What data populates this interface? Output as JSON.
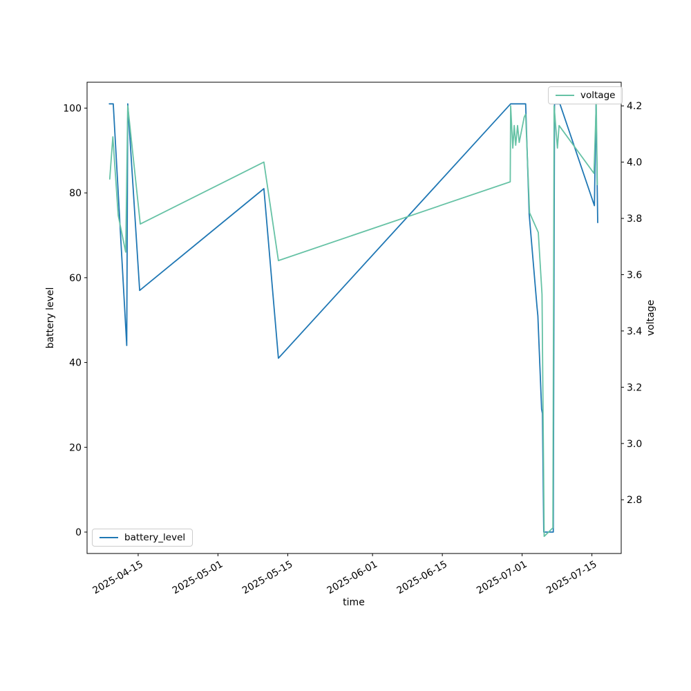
{
  "figure": {
    "background": "#ffffff"
  },
  "chart_data": {
    "type": "line",
    "title": "",
    "xlabel": "time",
    "ylabel_left": "battery level",
    "ylabel_right": "voltage",
    "legend_left": "battery_level",
    "legend_right": "voltage",
    "grid": false,
    "x_ticks": [
      "2025-04-15",
      "2025-05-01",
      "2025-05-15",
      "2025-06-01",
      "2025-06-15",
      "2025-07-01",
      "2025-07-15"
    ],
    "y_left_ticks": [
      "0",
      "20",
      "40",
      "60",
      "80",
      "100"
    ],
    "y_right_ticks": [
      "2.8",
      "3.0",
      "3.2",
      "3.4",
      "3.6",
      "3.8",
      "4.0",
      "4.2"
    ],
    "xlim": [
      "2025-04-04 18:00",
      "2025-07-20 21:00"
    ],
    "ylim_left": [
      -5.05,
      106.1
    ],
    "ylim_right": [
      2.609,
      4.284
    ],
    "series": [
      {
        "name": "battery_level",
        "axis": "left",
        "color": "#1f77b4",
        "points": [
          [
            "2025-04-09 05:00",
            101
          ],
          [
            "2025-04-10 00:00",
            101
          ],
          [
            "2025-04-12 17:00",
            44
          ],
          [
            "2025-04-12 22:00",
            101
          ],
          [
            "2025-04-15 07:00",
            57
          ],
          [
            "2025-05-10 05:00",
            81
          ],
          [
            "2025-05-13 03:00",
            41
          ],
          [
            "2025-06-28 17:00",
            101
          ],
          [
            "2025-07-01 17:00",
            101
          ],
          [
            "2025-07-02 10:00",
            75
          ],
          [
            "2025-07-04 00:00",
            53
          ],
          [
            "2025-07-04 04:00",
            51
          ],
          [
            "2025-07-04 22:00",
            29
          ],
          [
            "2025-07-05 02:00",
            28
          ],
          [
            "2025-07-05 08:00",
            0
          ],
          [
            "2025-07-07 06:00",
            0
          ],
          [
            "2025-07-07 12:00",
            101
          ],
          [
            "2025-07-08 14:00",
            101
          ],
          [
            "2025-07-15 12:00",
            77
          ],
          [
            "2025-07-15 20:00",
            101
          ],
          [
            "2025-07-16 04:00",
            73
          ]
        ]
      },
      {
        "name": "voltage",
        "axis": "right",
        "color": "#66c2a5",
        "points": [
          [
            "2025-04-09 07:00",
            3.94
          ],
          [
            "2025-04-09 22:00",
            4.09
          ],
          [
            "2025-04-11 00:00",
            3.81
          ],
          [
            "2025-04-12 12:00",
            3.68
          ],
          [
            "2025-04-12 22:00",
            4.2
          ],
          [
            "2025-04-15 10:00",
            3.78
          ],
          [
            "2025-05-10 05:00",
            4.0
          ],
          [
            "2025-05-13 03:00",
            3.65
          ],
          [
            "2025-06-28 15:00",
            3.93
          ],
          [
            "2025-06-28 17:00",
            4.2
          ],
          [
            "2025-06-29 03:00",
            4.05
          ],
          [
            "2025-06-29 10:00",
            4.13
          ],
          [
            "2025-06-29 17:00",
            4.06
          ],
          [
            "2025-06-30 02:00",
            4.13
          ],
          [
            "2025-06-30 10:00",
            4.07
          ],
          [
            "2025-07-01 10:00",
            4.16
          ],
          [
            "2025-07-01 17:00",
            4.17
          ],
          [
            "2025-07-02 12:00",
            3.82
          ],
          [
            "2025-07-04 06:00",
            3.75
          ],
          [
            "2025-07-05 00:00",
            3.53
          ],
          [
            "2025-07-05 10:00",
            2.67
          ],
          [
            "2025-07-07 04:00",
            2.7
          ],
          [
            "2025-07-07 10:00",
            4.2
          ],
          [
            "2025-07-08 02:00",
            4.05
          ],
          [
            "2025-07-08 10:00",
            4.13
          ],
          [
            "2025-07-15 10:00",
            3.96
          ],
          [
            "2025-07-15 21:00",
            4.21
          ],
          [
            "2025-07-16 02:00",
            3.92
          ]
        ]
      }
    ]
  }
}
